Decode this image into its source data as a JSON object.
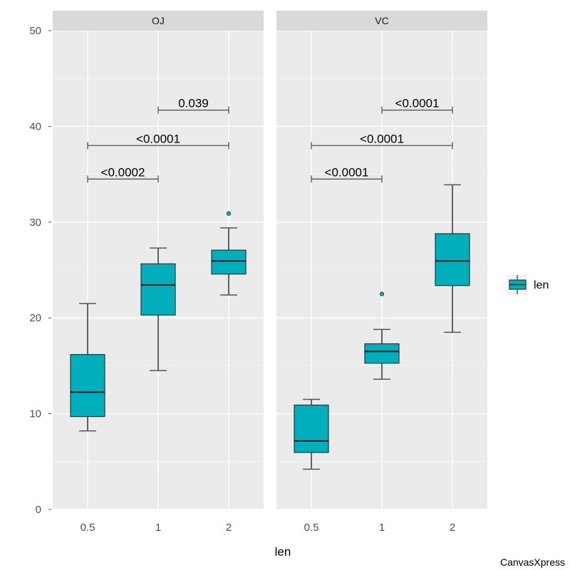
{
  "chart_data": {
    "type": "boxplot",
    "title": "",
    "xlabel": "len",
    "ylabel": "",
    "ylim": [
      0,
      50
    ],
    "y_ticks": [
      0,
      10,
      20,
      30,
      40,
      50
    ],
    "categories": [
      "0.5",
      "1",
      "2"
    ],
    "grid": true,
    "legend": {
      "position": "right",
      "entries": [
        "len"
      ]
    },
    "fill_color": "#00AFBB",
    "panels": [
      {
        "name": "OJ",
        "boxes": [
          {
            "category": "0.5",
            "min": 8.2,
            "q1": 9.7,
            "median": 12.25,
            "q3": 16.18,
            "max": 21.5,
            "outliers": []
          },
          {
            "category": "1",
            "min": 14.5,
            "q1": 20.3,
            "median": 23.45,
            "q3": 25.65,
            "max": 27.3,
            "outliers": []
          },
          {
            "category": "2",
            "min": 22.4,
            "q1": 24.58,
            "median": 25.95,
            "q3": 27.08,
            "max": 29.4,
            "outliers": [
              30.9
            ]
          }
        ],
        "comparisons": [
          {
            "from": "1",
            "to": "2",
            "y": 41.7,
            "label": "0.039"
          },
          {
            "from": "0.5",
            "to": "2",
            "y": 38.0,
            "label": "<0.0001"
          },
          {
            "from": "0.5",
            "to": "1",
            "y": 34.5,
            "label": "<0.0002"
          }
        ]
      },
      {
        "name": "VC",
        "boxes": [
          {
            "category": "0.5",
            "min": 4.2,
            "q1": 5.95,
            "median": 7.15,
            "q3": 10.9,
            "max": 11.5,
            "outliers": []
          },
          {
            "category": "1",
            "min": 13.6,
            "q1": 15.27,
            "median": 16.5,
            "q3": 17.3,
            "max": 18.8,
            "outliers": [
              22.5
            ]
          },
          {
            "category": "2",
            "min": 18.5,
            "q1": 23.38,
            "median": 25.95,
            "q3": 28.8,
            "max": 33.9,
            "outliers": []
          }
        ],
        "comparisons": [
          {
            "from": "1",
            "to": "2",
            "y": 41.7,
            "label": "<0.0001"
          },
          {
            "from": "0.5",
            "to": "2",
            "y": 38.0,
            "label": "<0.0001"
          },
          {
            "from": "0.5",
            "to": "1",
            "y": 34.5,
            "label": "<0.0001"
          }
        ]
      }
    ]
  },
  "credit": "CanvasXpress"
}
